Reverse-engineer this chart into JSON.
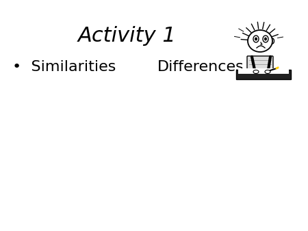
{
  "title": "Activity 1",
  "title_fontsize": 22,
  "bullet_text": "•  Similarities",
  "bullet_fontsize": 16,
  "differences_text": "Differences",
  "differences_fontsize": 16,
  "background_color": "#ffffff",
  "text_color": "#000000"
}
